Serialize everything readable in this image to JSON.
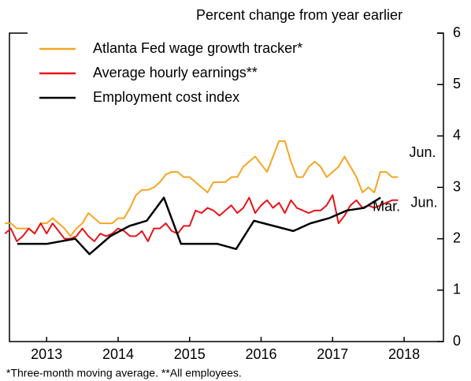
{
  "chart_data": {
    "type": "line",
    "title": "Percent change from year earlier",
    "footnote": "*Three-month moving average.  **All employees.",
    "xlim": [
      2012.98,
      2019.05
    ],
    "xticks": [
      {
        "value": 2013.5,
        "label": "2013"
      },
      {
        "value": 2014.5,
        "label": "2014"
      },
      {
        "value": 2015.5,
        "label": "2015"
      },
      {
        "value": 2016.5,
        "label": "2016"
      },
      {
        "value": 2017.5,
        "label": "2017"
      },
      {
        "value": 2018.5,
        "label": "2018"
      }
    ],
    "ylim": [
      0,
      6
    ],
    "yticks": [
      0,
      1,
      2,
      3,
      4,
      5,
      6
    ],
    "y_axis_side": "right",
    "series": [
      {
        "name": "Atlanta Fed wage growth tracker*",
        "color": "#f5a623",
        "end_label": "Jun.",
        "x": [
          2012.917,
          2013.0,
          2013.083,
          2013.167,
          2013.25,
          2013.333,
          2013.417,
          2013.5,
          2013.583,
          2013.667,
          2013.75,
          2013.833,
          2013.917,
          2014.0,
          2014.083,
          2014.167,
          2014.25,
          2014.333,
          2014.417,
          2014.5,
          2014.583,
          2014.667,
          2014.75,
          2014.833,
          2014.917,
          2015.0,
          2015.083,
          2015.167,
          2015.25,
          2015.333,
          2015.417,
          2015.5,
          2015.583,
          2015.667,
          2015.75,
          2015.833,
          2015.917,
          2016.0,
          2016.083,
          2016.167,
          2016.25,
          2016.333,
          2016.417,
          2016.5,
          2016.583,
          2016.667,
          2016.75,
          2016.833,
          2016.917,
          2017.0,
          2017.083,
          2017.167,
          2017.25,
          2017.333,
          2017.417,
          2017.5,
          2017.583,
          2017.667,
          2017.75,
          2017.833,
          2017.917,
          2018.0,
          2018.083,
          2018.167,
          2018.25,
          2018.333,
          2018.417
        ],
        "values": [
          2.3,
          2.3,
          2.2,
          2.2,
          2.2,
          2.1,
          2.3,
          2.3,
          2.4,
          2.3,
          2.2,
          2.05,
          2.2,
          2.3,
          2.5,
          2.4,
          2.3,
          2.3,
          2.3,
          2.4,
          2.4,
          2.6,
          2.85,
          2.95,
          2.95,
          3.0,
          3.1,
          3.25,
          3.3,
          3.3,
          3.2,
          3.2,
          3.1,
          3.0,
          2.9,
          3.1,
          3.1,
          3.1,
          3.2,
          3.2,
          3.4,
          3.5,
          3.6,
          3.45,
          3.3,
          3.6,
          3.9,
          3.9,
          3.5,
          3.2,
          3.2,
          3.4,
          3.5,
          3.4,
          3.2,
          3.3,
          3.4,
          3.6,
          3.4,
          3.2,
          2.9,
          3.0,
          2.9,
          3.3,
          3.3,
          3.2,
          3.2
        ]
      },
      {
        "name": "Average hourly earnings**",
        "color": "#e8141b",
        "end_label": "Jun.",
        "x": [
          2012.917,
          2013.0,
          2013.083,
          2013.167,
          2013.25,
          2013.333,
          2013.417,
          2013.5,
          2013.583,
          2013.667,
          2013.75,
          2013.833,
          2013.917,
          2014.0,
          2014.083,
          2014.167,
          2014.25,
          2014.333,
          2014.417,
          2014.5,
          2014.583,
          2014.667,
          2014.75,
          2014.833,
          2014.917,
          2015.0,
          2015.083,
          2015.167,
          2015.25,
          2015.333,
          2015.417,
          2015.5,
          2015.583,
          2015.667,
          2015.75,
          2015.833,
          2015.917,
          2016.0,
          2016.083,
          2016.167,
          2016.25,
          2016.333,
          2016.417,
          2016.5,
          2016.583,
          2016.667,
          2016.75,
          2016.833,
          2016.917,
          2017.0,
          2017.083,
          2017.167,
          2017.25,
          2017.333,
          2017.417,
          2017.5,
          2017.583,
          2017.667,
          2017.75,
          2017.833,
          2017.917,
          2018.0,
          2018.083,
          2018.167,
          2018.25,
          2018.333,
          2018.417
        ],
        "values": [
          2.1,
          2.2,
          1.95,
          2.05,
          2.2,
          2.1,
          2.3,
          2.1,
          2.3,
          2.15,
          2.0,
          2.0,
          2.05,
          2.2,
          2.05,
          1.95,
          2.1,
          2.05,
          2.1,
          2.2,
          2.15,
          2.05,
          2.05,
          2.15,
          1.95,
          2.2,
          2.2,
          2.3,
          2.15,
          2.1,
          2.25,
          2.25,
          2.55,
          2.5,
          2.6,
          2.55,
          2.45,
          2.55,
          2.65,
          2.5,
          2.6,
          2.8,
          2.5,
          2.65,
          2.75,
          2.6,
          2.7,
          2.5,
          2.75,
          2.6,
          2.55,
          2.5,
          2.55,
          2.55,
          2.65,
          2.85,
          2.3,
          2.45,
          2.65,
          2.75,
          2.6,
          2.65,
          2.6,
          2.65,
          2.7,
          2.75,
          2.75
        ]
      },
      {
        "name": "Employment cost index",
        "color": "#000000",
        "end_label": "Mar.",
        "x": [
          2013.09,
          2013.5,
          2013.9,
          2014.1,
          2014.39,
          2014.66,
          2014.9,
          2015.14,
          2015.38,
          2015.89,
          2016.15,
          2016.4,
          2016.95,
          2017.19,
          2017.45,
          2017.7,
          2017.94,
          2018.17
        ],
        "values": [
          1.9,
          1.9,
          2.0,
          1.7,
          2.05,
          2.25,
          2.35,
          2.8,
          1.9,
          1.9,
          1.8,
          2.35,
          2.15,
          2.3,
          2.4,
          2.55,
          2.6,
          2.8
        ]
      }
    ]
  }
}
